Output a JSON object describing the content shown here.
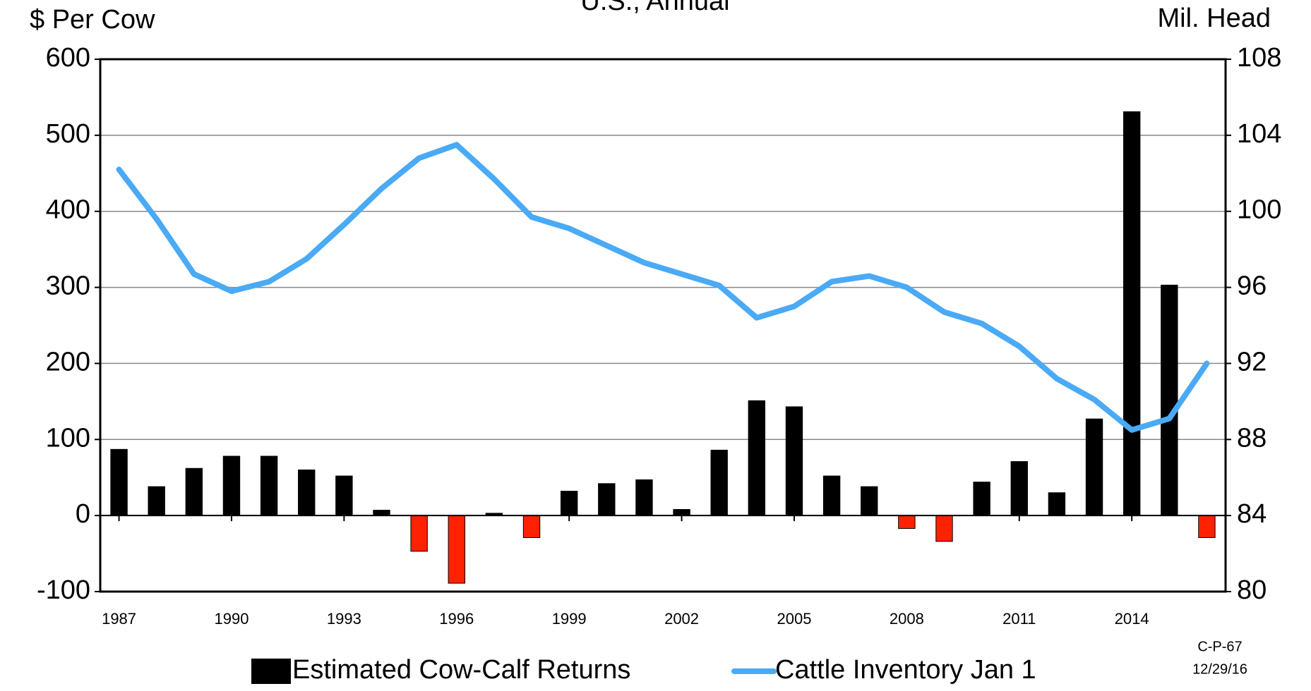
{
  "chart_data": {
    "type": "bar-line",
    "title": "U.S., Annual",
    "y_label": "$ Per Cow",
    "y2_label": "Mil. Head",
    "notes": [
      "C-P-67",
      "12/29/16"
    ],
    "x": [
      1987,
      1988,
      1989,
      1990,
      1991,
      1992,
      1993,
      1994,
      1995,
      1996,
      1997,
      1998,
      1999,
      2000,
      2001,
      2002,
      2003,
      2004,
      2005,
      2006,
      2007,
      2008,
      2009,
      2010,
      2011,
      2012,
      2013,
      2014,
      2015,
      2016
    ],
    "xlim": [
      1986.5,
      2016.5
    ],
    "xticks": [
      1987,
      1990,
      1993,
      1996,
      1999,
      2002,
      2005,
      2008,
      2011,
      2014
    ],
    "ylim": [
      -100,
      600
    ],
    "yticks": [
      -100,
      0,
      100,
      200,
      300,
      400,
      500,
      600
    ],
    "y2lim": [
      80,
      108
    ],
    "y2ticks": [
      80,
      84,
      88,
      92,
      96,
      100,
      104,
      108
    ],
    "grid": true,
    "series": [
      {
        "name": "Estimated Cow-Calf Returns",
        "type": "bar",
        "color": "#000000",
        "negative_color": "#ff2200",
        "values": [
          87,
          38,
          62,
          78,
          78,
          60,
          52,
          7,
          -47,
          -89,
          3,
          -29,
          32,
          42,
          47,
          8,
          86,
          151,
          143,
          52,
          38,
          -17,
          -34,
          44,
          71,
          30,
          127,
          531,
          303,
          -29
        ]
      },
      {
        "name": "Cattle Inventory Jan 1",
        "type": "line",
        "axis": "y2",
        "color": "#4aaaf5",
        "values": [
          102.2,
          99.6,
          96.7,
          95.8,
          96.3,
          97.5,
          99.3,
          101.2,
          102.8,
          103.5,
          101.7,
          99.7,
          99.1,
          98.2,
          97.3,
          96.7,
          96.1,
          94.4,
          95.0,
          96.3,
          96.6,
          96.0,
          94.7,
          94.1,
          92.9,
          91.2,
          90.1,
          88.5,
          89.1,
          92.0
        ]
      }
    ]
  }
}
